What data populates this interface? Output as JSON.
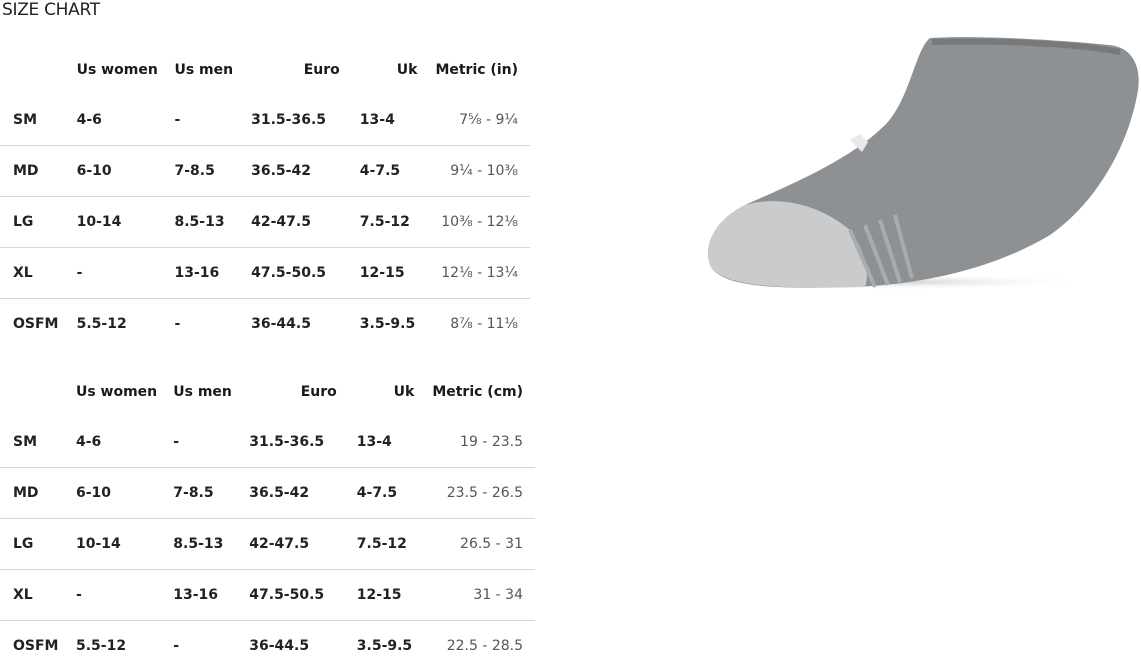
{
  "title": "SIZE CHART",
  "tables": [
    {
      "headers": [
        "",
        "Us women",
        "Us men",
        "Euro",
        "Uk",
        "Metric (in)"
      ],
      "rows": [
        [
          "SM",
          "4-6",
          "-",
          "31.5-36.5",
          "13-4",
          "7⅝ - 9¼"
        ],
        [
          "MD",
          "6-10",
          "7-8.5",
          "36.5-42",
          "4-7.5",
          "9¼ - 10⅜"
        ],
        [
          "LG",
          "10-14",
          "8.5-13",
          "42-47.5",
          "7.5-12",
          "10⅜ - 12⅛"
        ],
        [
          "XL",
          "-",
          "13-16",
          "47.5-50.5",
          "12-15",
          "12⅛ - 13¼"
        ],
        [
          "OSFM",
          "5.5-12",
          "-",
          "36-44.5",
          "3.5-9.5",
          "8⅞ - 11⅛"
        ]
      ]
    },
    {
      "headers": [
        "",
        "Us women",
        "Us men",
        "Euro",
        "Uk",
        "Metric (cm)"
      ],
      "rows": [
        [
          "SM",
          "4-6",
          "-",
          "31.5-36.5",
          "13-4",
          "19 - 23.5"
        ],
        [
          "MD",
          "6-10",
          "7-8.5",
          "36.5-42",
          "4-7.5",
          "23.5 - 26.5"
        ],
        [
          "LG",
          "10-14",
          "8.5-13",
          "42-47.5",
          "7.5-12",
          "26.5 - 31"
        ],
        [
          "XL",
          "-",
          "13-16",
          "47.5-50.5",
          "12-15",
          "31 - 34"
        ],
        [
          "OSFM",
          "5.5-12",
          "-",
          "36-44.5",
          "3.5-9.5",
          "22.5 - 28.5"
        ]
      ]
    }
  ],
  "product_image": {
    "name": "gray-no-show-sock",
    "colors": {
      "body": "#8e9193",
      "toe": "#c9cbcc"
    }
  }
}
